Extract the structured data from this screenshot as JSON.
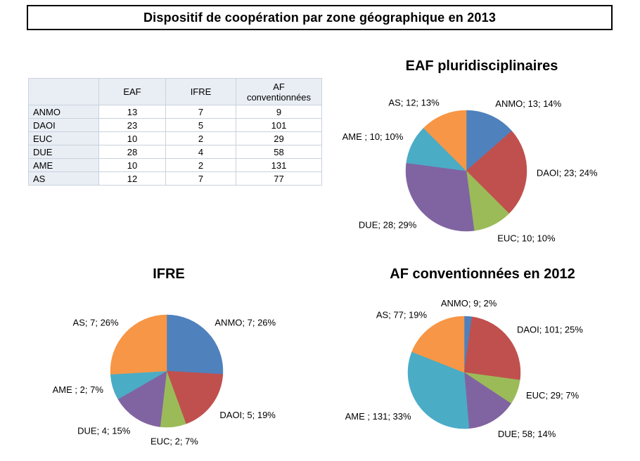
{
  "page_title": "Dispositif de coopération par zone géographique en 2013",
  "table": {
    "corner_label": "",
    "headers": [
      "EAF",
      "IFRE",
      "AF conventionnées"
    ],
    "rows": [
      {
        "label": "ANMO",
        "values": [
          "13",
          "7",
          "9"
        ]
      },
      {
        "label": "DAOI",
        "values": [
          "23",
          "5",
          "101"
        ]
      },
      {
        "label": "EUC",
        "values": [
          "10",
          "2",
          "29"
        ]
      },
      {
        "label": "DUE",
        "values": [
          "28",
          "4",
          "58"
        ]
      },
      {
        "label": "AME",
        "values": [
          "10",
          "2",
          "131"
        ]
      },
      {
        "label": "AS",
        "values": [
          "12",
          "7",
          "77"
        ]
      }
    ]
  },
  "chart_data": [
    {
      "type": "pie",
      "title": "EAF pluridisciplinaires",
      "labels": [
        "ANMO",
        "DAOI",
        "EUC",
        "DUE",
        "AME",
        "AS"
      ],
      "values": [
        13,
        23,
        10,
        28,
        10,
        12
      ],
      "percents": [
        14,
        24,
        10,
        29,
        10,
        13
      ],
      "slice_labels": [
        "ANMO; 13; 14%",
        "DAOI; 23; 24%",
        "EUC; 10; 10%",
        "DUE; 28; 29%",
        "AME ; 10; 10%",
        "AS; 12; 13%"
      ],
      "colors": [
        "#4F81BD",
        "#C0504D",
        "#9BBB59",
        "#8064A2",
        "#4BACC6",
        "#F79646"
      ],
      "legend_position": "none",
      "labels_position": "outside"
    },
    {
      "type": "pie",
      "title": "IFRE",
      "labels": [
        "ANMO",
        "DAOI",
        "EUC",
        "DUE",
        "AME",
        "AS"
      ],
      "values": [
        7,
        5,
        2,
        4,
        2,
        7
      ],
      "percents": [
        26,
        19,
        7,
        15,
        7,
        26
      ],
      "slice_labels": [
        "ANMO; 7; 26%",
        "DAOI; 5; 19%",
        "EUC; 2; 7%",
        "DUE; 4; 15%",
        "AME ; 2; 7%",
        "AS; 7; 26%"
      ],
      "colors": [
        "#4F81BD",
        "#C0504D",
        "#9BBB59",
        "#8064A2",
        "#4BACC6",
        "#F79646"
      ],
      "legend_position": "none",
      "labels_position": "outside"
    },
    {
      "type": "pie",
      "title": "AF conventionnées en 2012",
      "labels": [
        "ANMO",
        "DAOI",
        "EUC",
        "DUE",
        "AME",
        "AS"
      ],
      "values": [
        9,
        101,
        29,
        58,
        131,
        77
      ],
      "percents": [
        2,
        25,
        7,
        14,
        33,
        19
      ],
      "slice_labels": [
        "ANMO; 9; 2%",
        "DAOI; 101; 25%",
        "EUC; 29; 7%",
        "DUE; 58; 14%",
        "AME ; 131; 33%",
        "AS; 77; 19%"
      ],
      "colors": [
        "#4F81BD",
        "#C0504D",
        "#9BBB59",
        "#8064A2",
        "#4BACC6",
        "#F79646"
      ],
      "legend_position": "none",
      "labels_position": "outside"
    }
  ]
}
